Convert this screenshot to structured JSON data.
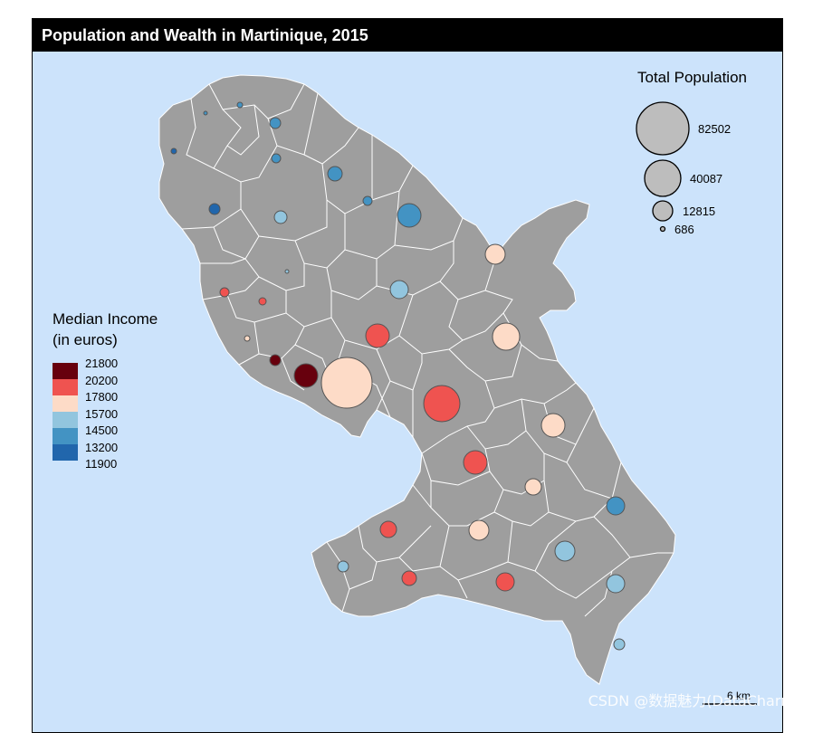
{
  "title": "Population and Wealth in Martinique, 2015",
  "size_legend": {
    "title": "Total Population",
    "values": [
      82502,
      40087,
      12815,
      686
    ]
  },
  "color_legend": {
    "title_line1": "Median Income",
    "title_line2": "(in euros)",
    "breaks": [
      "21800",
      "20200",
      "17800",
      "15700",
      "14500",
      "13200",
      "11900"
    ],
    "colors": [
      "#67000d",
      "#ef5350",
      "#fddbc7",
      "#92c5de",
      "#4393c3",
      "#2166ac"
    ]
  },
  "scale_bar": {
    "label": "6 km"
  },
  "colors": {
    "sea": "#cce3fb",
    "land": "#9e9e9e",
    "border": "#ffffff",
    "circle_stroke": "#666666"
  },
  "watermark": "CSDN @数据魅力(DataCharm)"
}
